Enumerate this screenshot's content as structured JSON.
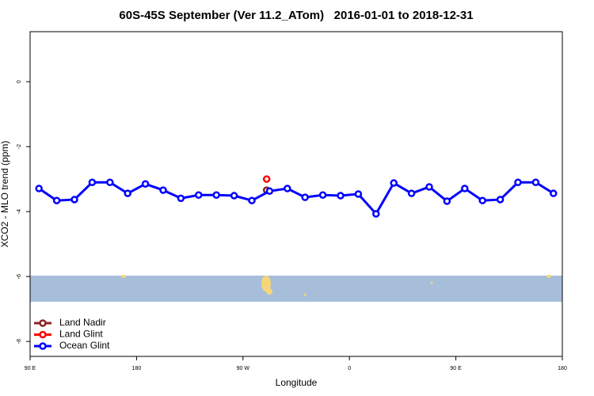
{
  "chart_data": {
    "type": "line",
    "title": "60S-45S September (Ver 11.2_ATom)   2016-01-01 to 2018-12-31",
    "x_label": "Longitude",
    "y_label": "XCO2 - MLO trend (ppm)",
    "xlim": [
      90,
      540
    ],
    "xticks": [
      {
        "value": 90,
        "label": "90 E"
      },
      180,
      {
        "value": 270,
        "label": "90 W"
      },
      {
        "value": 360,
        "label": "0"
      },
      {
        "value": 450,
        "label": "90 E"
      },
      {
        "value": 540,
        "label": "180"
      }
    ],
    "ylim": [
      -8.46,
      1.54
    ],
    "yticks": [
      -8,
      -6,
      -4,
      -2,
      0
    ],
    "legend": "bottom-left",
    "series": [
      {
        "name": "Land Nadir",
        "color": "#8b2323",
        "x": [
          290
        ],
        "values": [
          -3.34
        ]
      },
      {
        "name": "Land Glint",
        "color": "#ff0000",
        "x": [
          290
        ],
        "values": [
          -3.0
        ]
      },
      {
        "name": "Ocean Glint",
        "color": "#0000ff",
        "x": [
          97.5,
          112.5,
          127.5,
          142.5,
          157.5,
          172.5,
          187.5,
          202.5,
          217.5,
          232.5,
          247.5,
          262.5,
          277.5,
          292.5,
          307.5,
          322.5,
          337.5,
          352.5,
          367.5,
          382.5,
          397.5,
          412.5,
          427.5,
          442.5,
          457.5,
          472.5,
          487.5,
          502.5,
          517.5,
          532.5
        ],
        "values": [
          -3.29,
          -3.66,
          -3.63,
          -3.1,
          -3.1,
          -3.44,
          -3.15,
          -3.34,
          -3.59,
          -3.49,
          -3.49,
          -3.51,
          -3.66,
          -3.37,
          -3.29,
          -3.56,
          -3.49,
          -3.51,
          -3.46,
          -4.07,
          -3.12,
          -3.44,
          -3.24,
          -3.68,
          -3.29,
          -3.66,
          -3.63,
          -3.1,
          -3.1,
          -3.44
        ]
      }
    ]
  }
}
